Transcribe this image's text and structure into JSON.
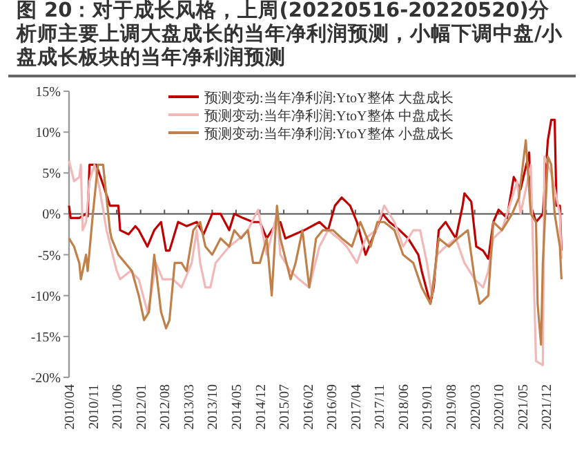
{
  "chart_data": {
    "type": "line",
    "title": "图 20：对于成长风格，上周(20220516-20220520)分析师主要上调大盘成长的当年净利润预测，小幅下调中盘/小盘成长板块的当年净利润预测",
    "xlim": [
      "2010-04",
      "2022-05"
    ],
    "xticks": [
      {
        "value": "2010-04",
        "label": "2010/04"
      },
      {
        "value": "2010-11",
        "label": "2010/11"
      },
      {
        "value": "2011-06",
        "label": "2011/06"
      },
      {
        "value": "2012-01",
        "label": "2012/01"
      },
      {
        "value": "2012-08",
        "label": "2012/08"
      },
      {
        "value": "2013-03",
        "label": "2013/03"
      },
      {
        "value": "2013-10",
        "label": "2013/10"
      },
      {
        "value": "2014-05",
        "label": "2014/05"
      },
      {
        "value": "2014-12",
        "label": "2014/12"
      },
      {
        "value": "2015-07",
        "label": "2015/07"
      },
      {
        "value": "2016-02",
        "label": "2016/02"
      },
      {
        "value": "2016-09",
        "label": "2016/09"
      },
      {
        "value": "2017-04",
        "label": "2017/04"
      },
      {
        "value": "2017-11",
        "label": "2017/11"
      },
      {
        "value": "2018-06",
        "label": "2018/06"
      },
      {
        "value": "2019-01",
        "label": "2019/01"
      },
      {
        "value": "2019-08",
        "label": "2019/08"
      },
      {
        "value": "2020-03",
        "label": "2020/03"
      },
      {
        "value": "2020-10",
        "label": "2020/10"
      },
      {
        "value": "2021-05",
        "label": "2021/05"
      },
      {
        "value": "2021-12",
        "label": "2021/12"
      }
    ],
    "ylim": [
      -20,
      15
    ],
    "yticks": [
      {
        "value": -20,
        "label": "-20%"
      },
      {
        "value": -15,
        "label": "-15%"
      },
      {
        "value": -10,
        "label": "-10%"
      },
      {
        "value": -5,
        "label": "-5%"
      },
      {
        "value": 0,
        "label": "0%"
      },
      {
        "value": 5,
        "label": "5%"
      },
      {
        "value": 10,
        "label": "10%"
      },
      {
        "value": 15,
        "label": "15%"
      }
    ],
    "legend": "top right",
    "marker": "none",
    "line_style": "solid",
    "series": [
      {
        "name": "预测变动:当年净利润:YtoY整体 大盘成长",
        "color": "#c00000",
        "x": [
          "2010-04-01",
          "2010-04-15",
          "2010-07-01",
          "2010-09-01",
          "2010-09-15",
          "2010-10-01",
          "2010-12-01",
          "2011-02-15",
          "2011-04-01",
          "2011-06-15",
          "2011-07-01",
          "2011-09-15",
          "2011-11-15",
          "2011-12-15",
          "2012-03-01",
          "2012-05-01",
          "2012-07-01",
          "2012-08-15",
          "2012-09-15",
          "2012-12-01",
          "2013-02-15",
          "2013-05-15",
          "2013-07-15",
          "2013-10-01",
          "2013-12-15",
          "2014-03-01",
          "2014-04-15",
          "2014-07-01",
          "2014-10-01",
          "2014-12-01",
          "2015-02-01",
          "2015-05-01",
          "2015-06-01",
          "2015-07-15",
          "2016-01-01",
          "2016-05-15",
          "2016-08-01",
          "2016-10-01",
          "2016-12-01",
          "2017-02-15",
          "2017-04-15",
          "2017-07-01",
          "2017-10-01",
          "2017-12-01",
          "2018-02-01",
          "2018-05-01",
          "2018-07-15",
          "2018-10-15",
          "2018-11-15",
          "2019-02-01",
          "2019-03-01",
          "2019-04-15",
          "2019-06-15",
          "2019-09-15",
          "2019-11-15",
          "2019-12-01",
          "2020-02-01",
          "2020-03-15",
          "2020-05-15",
          "2020-07-01",
          "2020-08-15",
          "2020-10-01",
          "2020-12-15",
          "2021-02-15",
          "2021-04-15",
          "2021-07-01",
          "2021-07-15",
          "2021-09-01",
          "2021-11-01",
          "2021-12-15",
          "2022-01-15",
          "2022-02-15",
          "2022-03-01",
          "2022-04-01",
          "2022-04-15"
        ],
        "values": [
          1,
          -0.5,
          -0.5,
          0,
          -0.3,
          6,
          6,
          3,
          1,
          1,
          -2,
          -2.5,
          -1.5,
          -2,
          -4,
          -2,
          -1,
          -4.5,
          -4.5,
          -1,
          -1.5,
          -1,
          -2.5,
          0,
          0,
          -2,
          0,
          -0.5,
          -1,
          -1,
          -3,
          -1,
          -1,
          -3,
          -2,
          -1,
          -2,
          1,
          2,
          1,
          -1,
          -5,
          -2,
          0,
          -1,
          -2,
          -3,
          -5,
          -7,
          -11,
          -9,
          -2,
          -1,
          -3,
          1,
          2.5,
          1.5,
          -4,
          -4.5,
          -5.5,
          -1,
          0.5,
          -0.5,
          4.5,
          3,
          7.5,
          1,
          -1,
          0,
          9,
          11.5,
          11.5,
          1,
          1,
          -4.5
        ]
      },
      {
        "name": "预测变动:当年净利润:YtoY整体 中盘成长",
        "color": "#f2b8b8",
        "x": [
          "2010-04-01",
          "2010-05-15",
          "2010-07-01",
          "2010-07-15",
          "2010-08-01",
          "2010-09-01",
          "2010-10-01",
          "2010-11-15",
          "2011-01-01",
          "2011-03-01",
          "2011-06-01",
          "2011-07-01",
          "2011-10-01",
          "2011-12-15",
          "2012-03-01",
          "2012-04-01",
          "2012-05-15",
          "2012-07-15",
          "2012-10-15",
          "2013-01-01",
          "2013-04-01",
          "2013-05-15",
          "2013-06-15",
          "2013-08-01",
          "2013-09-15",
          "2013-11-01",
          "2014-01-01",
          "2014-03-01",
          "2014-06-01",
          "2014-08-15",
          "2014-11-15",
          "2015-02-01",
          "2015-05-01",
          "2015-06-01",
          "2015-09-01",
          "2015-11-15",
          "2016-02-15",
          "2016-05-15",
          "2016-08-01",
          "2016-11-01",
          "2017-01-15",
          "2017-04-15",
          "2017-07-01",
          "2017-10-01",
          "2017-12-15",
          "2018-03-15",
          "2018-06-01",
          "2018-09-01",
          "2018-11-01",
          "2019-01-01",
          "2019-02-15",
          "2019-04-01",
          "2019-06-15",
          "2019-09-15",
          "2019-12-01",
          "2020-03-01",
          "2020-05-15",
          "2020-07-01",
          "2020-08-15",
          "2020-11-01",
          "2021-02-01",
          "2021-03-15",
          "2021-04-15",
          "2021-06-01",
          "2021-07-15",
          "2021-09-01",
          "2021-11-01",
          "2021-11-15",
          "2022-01-15",
          "2022-04-01",
          "2022-04-15"
        ],
        "values": [
          6.5,
          4,
          4.5,
          6,
          -2,
          -1,
          4,
          6,
          3,
          -2,
          -7,
          -8,
          -7,
          -8,
          -12,
          -10,
          -6,
          -8,
          -8,
          -9,
          -6,
          -2,
          -6,
          -9,
          -9,
          -6,
          -5,
          -4,
          -3,
          -2,
          0.5,
          -5,
          0,
          -5,
          -7,
          -8,
          -9,
          -4,
          -2,
          -3,
          -4,
          -6,
          -3,
          -2,
          1,
          -1,
          -4,
          -2,
          -2,
          -6,
          -10,
          -5,
          -4,
          -3,
          -6,
          -8,
          -9,
          -7,
          -3,
          -2,
          2,
          4,
          0,
          3,
          6,
          -18,
          -18.5,
          7,
          5,
          0,
          -5.5
        ]
      },
      {
        "name": "预测变动:当年净利润:YtoY整体 小盘成长",
        "color": "#c0804a",
        "x": [
          "2010-04-01",
          "2010-05-15",
          "2010-07-01",
          "2010-07-15",
          "2010-09-01",
          "2010-09-15",
          "2010-11-01",
          "2010-12-15",
          "2011-02-01",
          "2011-04-01",
          "2011-04-15",
          "2011-06-15",
          "2011-08-15",
          "2011-10-15",
          "2011-12-15",
          "2012-02-01",
          "2012-03-15",
          "2012-05-01",
          "2012-07-01",
          "2012-08-15",
          "2012-09-15",
          "2012-11-01",
          "2013-01-01",
          "2013-02-15",
          "2013-04-15",
          "2013-06-15",
          "2013-08-01",
          "2013-10-01",
          "2013-12-15",
          "2014-03-01",
          "2014-04-15",
          "2014-06-15",
          "2014-08-15",
          "2014-10-01",
          "2014-12-01",
          "2015-02-01",
          "2015-03-15",
          "2015-05-01",
          "2015-06-01",
          "2015-09-01",
          "2015-10-15",
          "2015-12-15",
          "2016-02-15",
          "2016-04-15",
          "2016-06-15",
          "2016-09-15",
          "2016-12-01",
          "2017-03-01",
          "2017-05-15",
          "2017-08-15",
          "2017-10-15",
          "2017-12-15",
          "2018-03-15",
          "2018-06-01",
          "2018-09-01",
          "2018-11-15",
          "2019-02-01",
          "2019-03-01",
          "2019-04-15",
          "2019-07-15",
          "2019-10-01",
          "2020-01-01",
          "2020-03-01",
          "2020-04-15",
          "2020-07-01",
          "2020-08-15",
          "2020-11-01",
          "2021-02-01",
          "2021-04-01",
          "2021-06-01",
          "2021-07-15",
          "2021-09-01",
          "2021-09-15",
          "2021-10-15",
          "2021-11-01",
          "2021-12-15",
          "2022-01-15",
          "2022-02-15",
          "2022-04-01",
          "2022-04-15"
        ],
        "values": [
          -3,
          -4,
          -6,
          -8,
          -5,
          -7,
          0,
          6,
          6,
          -2,
          -3,
          -5,
          -6,
          -7,
          -10,
          -13,
          -12,
          -5,
          -12,
          -14,
          -13,
          -6,
          -6,
          -7,
          -2,
          -1,
          -4,
          -5,
          -3,
          -4,
          -2,
          -3,
          -2,
          -6,
          -6,
          -3,
          -10,
          1,
          -3,
          -8,
          -6,
          -2,
          -9,
          -3,
          -2,
          -2,
          -3,
          -4,
          -1,
          -4,
          -1,
          -1,
          -2,
          -5,
          -6,
          -9,
          -11,
          -8,
          -3,
          -4,
          -3,
          -2,
          -8,
          -11,
          -10,
          -1,
          -2,
          0,
          2,
          9,
          0,
          -1,
          -11,
          -16,
          -6,
          7,
          6,
          0,
          -4,
          -8
        ]
      }
    ]
  }
}
